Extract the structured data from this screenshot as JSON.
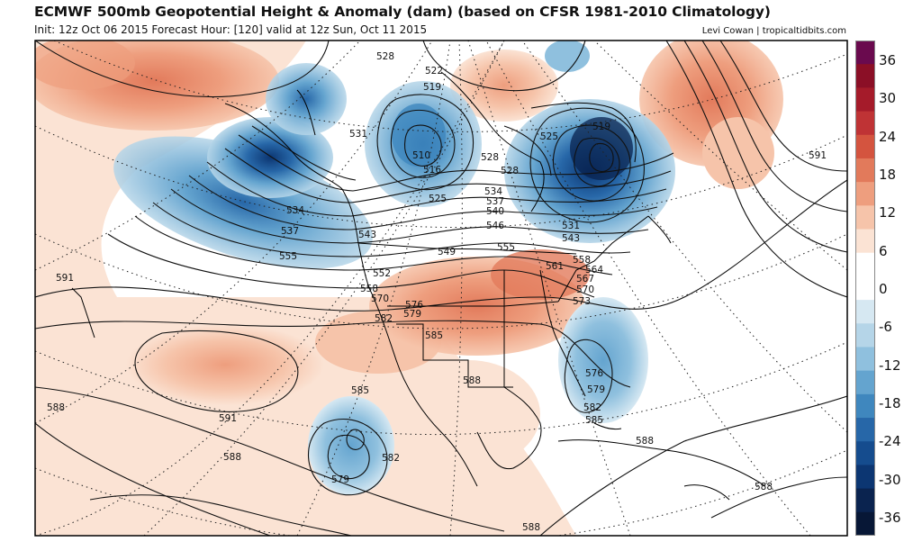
{
  "header": {
    "title": "ECMWF 500mb Geopotential Height & Anomaly (dam) (based on CFSR 1981-2010 Climatology)",
    "subtitle": "Init: 12z Oct 06 2015   Forecast Hour: [120]   valid at 12z Sun, Oct 11 2015",
    "credit": "Levi Cowan | tropicaltidbits.com"
  },
  "colorbar": {
    "labels": [
      "36",
      "30",
      "24",
      "18",
      "12",
      "6",
      "0",
      "-6",
      "-12",
      "-18",
      "-24",
      "-30",
      "-36"
    ],
    "colors": [
      "#6a0a4e",
      "#8b0f26",
      "#a51b2a",
      "#bf3335",
      "#d4543f",
      "#e27a5b",
      "#ee9e7e",
      "#f6c4aa",
      "#fbe3d4",
      "#ffffff",
      "#ffffff",
      "#d6e8f2",
      "#b5d5e8",
      "#8fc0de",
      "#64a4cf",
      "#3f87be",
      "#2767a8",
      "#154c8e",
      "#0c3672",
      "#0a234f",
      "#071736"
    ]
  },
  "map": {
    "contour_labels": [
      "528",
      "522",
      "519",
      "531",
      "528",
      "525",
      "519",
      "510",
      "516",
      "528",
      "534",
      "537",
      "525",
      "540",
      "534",
      "537",
      "543",
      "546",
      "555",
      "549",
      "555",
      "558",
      "561",
      "564",
      "567",
      "570",
      "573",
      "531",
      "543",
      "552",
      "558",
      "570",
      "576",
      "579",
      "582",
      "585",
      "588",
      "591",
      "588",
      "591",
      "588",
      "585",
      "579",
      "582",
      "576",
      "579",
      "582",
      "585",
      "588",
      "588",
      "588",
      "591"
    ]
  }
}
